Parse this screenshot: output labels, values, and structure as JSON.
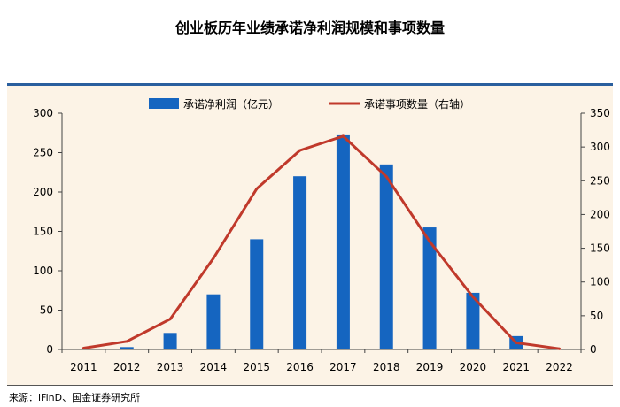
{
  "page": {
    "title": "创业板历年业绩承诺净利润规模和事项数量",
    "source": "来源：iFinD、国金证券研究所"
  },
  "chart_data": {
    "type": "bar",
    "categories": [
      "2011",
      "2012",
      "2013",
      "2014",
      "2015",
      "2016",
      "2017",
      "2018",
      "2019",
      "2020",
      "2021",
      "2022"
    ],
    "series": [
      {
        "name": "承诺净利润（亿元）",
        "type": "bar",
        "axis": "left",
        "color": "#1565c0",
        "values": [
          1,
          3,
          21,
          70,
          140,
          220,
          272,
          235,
          155,
          72,
          17,
          1
        ]
      },
      {
        "name": "承诺事项数量（右轴）",
        "type": "line",
        "axis": "right",
        "color": "#c0392b",
        "values": [
          2,
          12,
          45,
          135,
          238,
          295,
          316,
          256,
          160,
          78,
          10,
          1
        ]
      }
    ],
    "ylim_left": [
      0,
      300
    ],
    "yticks_left": [
      0,
      50,
      100,
      150,
      200,
      250,
      300
    ],
    "ylim_right": [
      0,
      350
    ],
    "yticks_right": [
      0,
      50,
      100,
      150,
      200,
      250,
      300,
      350
    ],
    "grid": false,
    "legend_position": "top-center"
  }
}
